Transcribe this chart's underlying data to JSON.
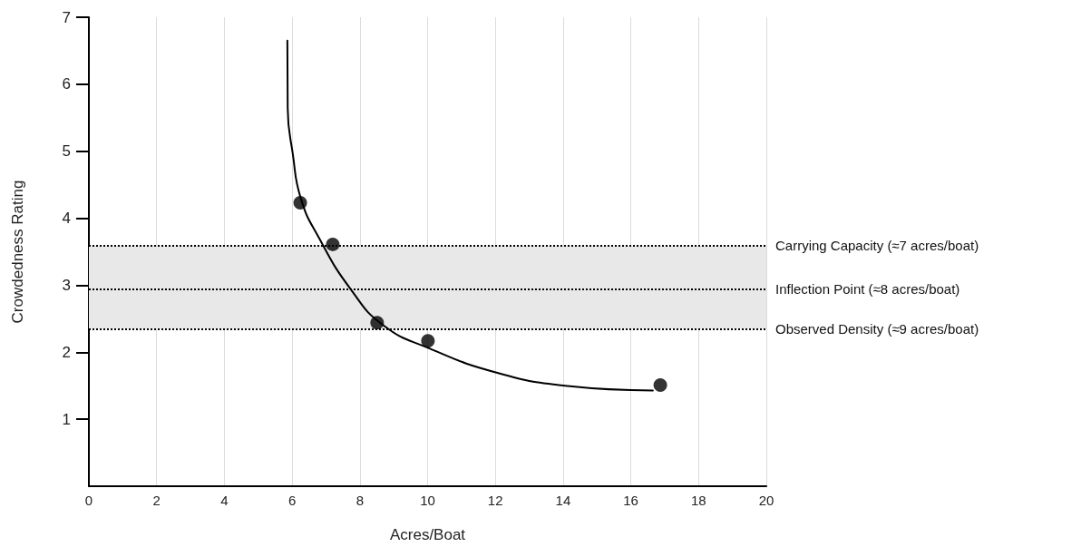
{
  "chart_data": {
    "type": "scatter",
    "xlabel": "Acres/Boat",
    "ylabel": "Crowdedness Rating",
    "xlim": [
      0,
      20
    ],
    "xticks": [
      0,
      2,
      4,
      6,
      8,
      10,
      12,
      14,
      16,
      18,
      20
    ],
    "ylim": [
      0,
      7
    ],
    "yticks": [
      1,
      2,
      3,
      4,
      5,
      6,
      7
    ],
    "grid": "x",
    "series": [
      {
        "color": "#000000",
        "marker": "circle",
        "x": [
          6.24,
          7.2,
          8.51,
          10.01,
          16.87
        ],
        "values": [
          4.23,
          3.61,
          2.44,
          2.17,
          1.51
        ]
      },
      {
        "type": "line",
        "color": "#000000",
        "marker": "none",
        "line_style": "solid",
        "x": [
          16.65,
          14.06,
          12.01,
          10.04,
          8.7,
          7.73,
          6.79,
          6.26,
          6.02,
          5.87,
          5.86
        ],
        "values": [
          1.43,
          1.5,
          1.7,
          2.06,
          2.4,
          2.94,
          3.71,
          4.29,
          4.96,
          5.64,
          6.65
        ]
      }
    ],
    "ref_lines": [
      {
        "axis": "y",
        "value": 3.59,
        "label": "Carrying Capacity (≈7 acres/boat)",
        "line_style": "dotted",
        "color": "#000000"
      },
      {
        "axis": "y",
        "value": 2.94,
        "label": "Inflection Point (≈8 acres/boat)",
        "line_style": "dotted",
        "color": "#000000"
      },
      {
        "axis": "y",
        "value": 2.35,
        "label": "Observed Density (≈9 acres/boat)",
        "line_style": "dotted",
        "color": "#000000"
      }
    ],
    "bands": [
      {
        "axis": "y",
        "from": 2.35,
        "to": 3.59,
        "color": "#e8e8e8"
      }
    ]
  }
}
